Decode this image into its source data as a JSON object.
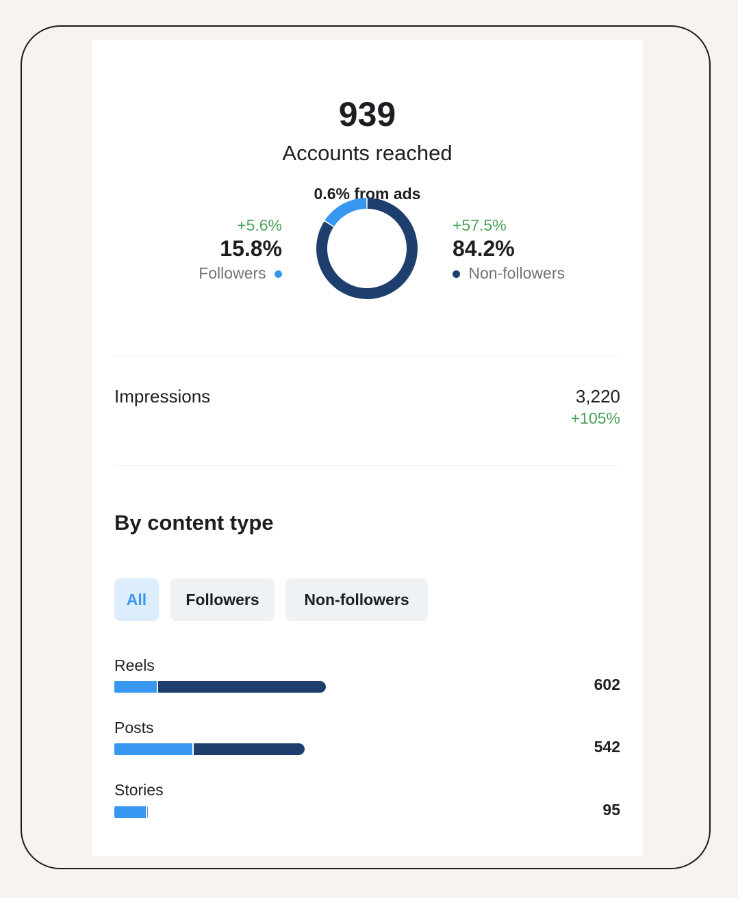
{
  "summary": {
    "accounts_reached_value": "939",
    "accounts_reached_label": "Accounts reached",
    "from_ads": "0.6% from ads"
  },
  "audience_split": {
    "followers": {
      "change": "+5.6%",
      "value": "15.8%",
      "label": "Followers",
      "fraction": 0.158,
      "color": "#3897f0"
    },
    "non_followers": {
      "change": "+57.5%",
      "value": "84.2%",
      "label": "Non-followers",
      "fraction": 0.842,
      "color": "#1e3e6e"
    }
  },
  "impressions": {
    "label": "Impressions",
    "value": "3,220",
    "change": "+105%"
  },
  "content_type": {
    "title": "By content type",
    "filters": [
      {
        "label": "All",
        "active": true
      },
      {
        "label": "Followers",
        "active": false
      },
      {
        "label": "Non-followers",
        "active": false
      }
    ],
    "rows": [
      {
        "label": "Reels",
        "value": "602",
        "total": 602,
        "followers_fraction": 0.2
      },
      {
        "label": "Posts",
        "value": "542",
        "total": 542,
        "followers_fraction": 0.41
      },
      {
        "label": "Stories",
        "value": "95",
        "total": 95,
        "followers_fraction": 0.95
      }
    ]
  },
  "colors": {
    "followers": "#3897f0",
    "non_followers": "#1e3e6e",
    "positive_change": "#4aa357"
  }
}
